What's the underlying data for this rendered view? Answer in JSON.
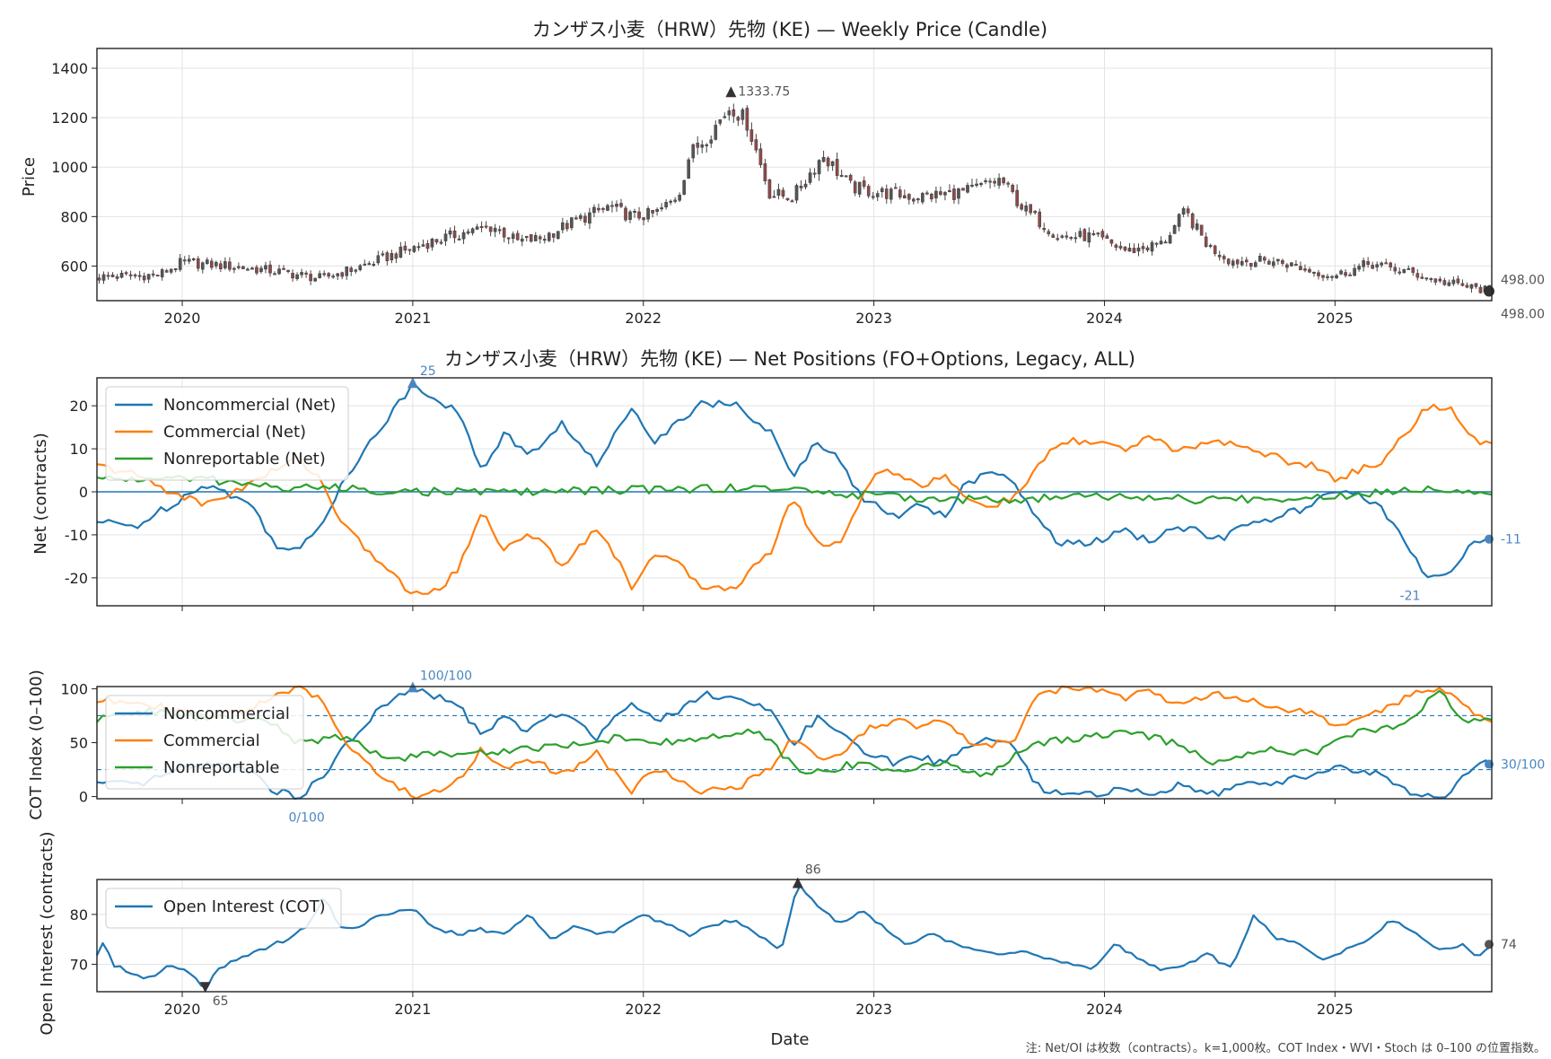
{
  "footnote": "注: Net/OI は枚数（contracts）。k=1,000枚。COT Index・WVI・Stoch は 0–100 の位置指数。",
  "colors": {
    "noncommercial": "#1f77b4",
    "commercial": "#ff7f0e",
    "nonreportable": "#2ca02c",
    "candle_up": "#555555",
    "candle_down": "#8c4a4a",
    "ref_line": "#1f77b4"
  },
  "chart_data": [
    {
      "type": "candlestick",
      "title": "カンザス小麦（HRW）先物 (KE) — Weekly Price (Candle)",
      "ylabel": "Price",
      "xlabel": "",
      "ylim": [
        460,
        1480
      ],
      "xlim": [
        2019.63,
        2025.68
      ],
      "yticks": [
        "600",
        "800",
        "1000",
        "1200",
        "1400"
      ],
      "xticks": [
        "2020",
        "2021",
        "2022",
        "2023",
        "2024",
        "2025"
      ],
      "grid": true,
      "keypoints": {
        "x": [
          2019.63,
          2019.9,
          2020.0,
          2020.2,
          2020.4,
          2020.6,
          2020.75,
          2020.9,
          2021.05,
          2021.2,
          2021.35,
          2021.45,
          2021.55,
          2021.7,
          2021.85,
          2021.95,
          2022.05,
          2022.15,
          2022.2,
          2022.3,
          2022.38,
          2022.45,
          2022.55,
          2022.65,
          2022.78,
          2022.9,
          2023.0,
          2023.2,
          2023.4,
          2023.55,
          2023.65,
          2023.8,
          2023.95,
          2024.1,
          2024.25,
          2024.35,
          2024.45,
          2024.55,
          2024.75,
          2024.9,
          2025.0,
          2025.15,
          2025.3,
          2025.45,
          2025.55,
          2025.68
        ],
        "y": [
          555,
          565,
          615,
          600,
          580,
          550,
          590,
          640,
          690,
          730,
          760,
          700,
          710,
          780,
          840,
          800,
          810,
          880,
          1050,
          1150,
          1250,
          1180,
          890,
          880,
          1050,
          920,
          900,
          880,
          900,
          950,
          830,
          720,
          720,
          660,
          690,
          820,
          680,
          620,
          620,
          580,
          560,
          610,
          580,
          540,
          520,
          498
        ]
      },
      "annotations": [
        {
          "text": "1333.75",
          "x": 2022.38,
          "y": 1333.75
        },
        {
          "text": "498.00",
          "x": 2025.68,
          "y": 498
        },
        {
          "text": "498.00",
          "x": 2025.68,
          "y": 475
        }
      ]
    },
    {
      "type": "line",
      "title": "カンザス小麦（HRW）先物 (KE) — Net Positions (FO+Options, Legacy, ALL)",
      "ylabel": "Net (contracts)",
      "xlabel": "",
      "ylim": [
        -26.5,
        26.5
      ],
      "xlim": [
        2019.63,
        2025.68
      ],
      "yticks": [
        "-20",
        "-10",
        "0",
        "10",
        "20"
      ],
      "legend": "top-left",
      "grid": true,
      "series": [
        {
          "name": "Noncommercial (Net)",
          "color": "#1f77b4",
          "x": [
            2019.63,
            2019.8,
            2019.95,
            2020.1,
            2020.3,
            2020.4,
            2020.5,
            2020.6,
            2020.7,
            2020.85,
            2021.0,
            2021.1,
            2021.2,
            2021.3,
            2021.4,
            2021.5,
            2021.65,
            2021.8,
            2021.95,
            2022.05,
            2022.15,
            2022.25,
            2022.4,
            2022.55,
            2022.65,
            2022.75,
            2022.85,
            2022.95,
            2023.0,
            2023.1,
            2023.2,
            2023.3,
            2023.4,
            2023.5,
            2023.6,
            2023.7,
            2023.8,
            2023.9,
            2024.0,
            2024.1,
            2024.2,
            2024.3,
            2024.4,
            2024.5,
            2024.6,
            2024.7,
            2024.8,
            2024.9,
            2025.0,
            2025.1,
            2025.2,
            2025.3,
            2025.4,
            2025.5,
            2025.6,
            2025.68
          ],
          "y": [
            -7,
            -8,
            -3,
            2,
            -3,
            -12,
            -14,
            -8,
            3,
            14,
            25,
            22,
            18,
            5,
            14,
            8,
            16,
            6,
            20,
            12,
            16,
            21,
            20,
            14,
            3,
            12,
            8,
            -2,
            -3,
            -6,
            -2,
            -6,
            2,
            4,
            3,
            -6,
            -12,
            -12,
            -11,
            -9,
            -12,
            -8,
            -9,
            -11,
            -8,
            -7,
            -5,
            -3,
            0,
            -1,
            -3,
            -12,
            -20,
            -19,
            -11,
            -11
          ]
        },
        {
          "name": "Commercial (Net)",
          "color": "#ff7f0e",
          "x": [
            2019.63,
            2019.8,
            2019.95,
            2020.1,
            2020.3,
            2020.4,
            2020.5,
            2020.6,
            2020.7,
            2020.85,
            2021.0,
            2021.1,
            2021.2,
            2021.3,
            2021.4,
            2021.5,
            2021.65,
            2021.8,
            2021.95,
            2022.05,
            2022.15,
            2022.25,
            2022.4,
            2022.55,
            2022.65,
            2022.75,
            2022.85,
            2022.95,
            2023.0,
            2023.1,
            2023.2,
            2023.3,
            2023.4,
            2023.5,
            2023.6,
            2023.7,
            2023.8,
            2023.9,
            2024.0,
            2024.1,
            2024.2,
            2024.3,
            2024.4,
            2024.5,
            2024.6,
            2024.7,
            2024.8,
            2024.9,
            2025.0,
            2025.1,
            2025.2,
            2025.3,
            2025.4,
            2025.5,
            2025.6,
            2025.68
          ],
          "y": [
            6,
            4,
            0,
            -3,
            2,
            5,
            8,
            3,
            -8,
            -16,
            -24,
            -23,
            -18,
            -4,
            -14,
            -9,
            -17,
            -8,
            -22,
            -14,
            -17,
            -22,
            -22,
            -14,
            -1,
            -12,
            -12,
            -1,
            4,
            5,
            1,
            4,
            -2,
            -3,
            -2,
            5,
            11,
            12,
            11,
            10,
            13,
            9,
            11,
            12,
            10,
            9,
            7,
            6,
            3,
            5,
            7,
            13,
            20,
            19,
            12,
            11
          ]
        },
        {
          "name": "Nonreportable (Net)",
          "color": "#2ca02c",
          "x": [
            2019.63,
            2019.9,
            2020.1,
            2020.4,
            2020.6,
            2021.0,
            2021.5,
            2022.0,
            2022.5,
            2023.0,
            2023.5,
            2024.0,
            2024.5,
            2025.0,
            2025.4,
            2025.68
          ],
          "y": [
            3,
            3,
            3,
            1,
            1,
            0,
            0,
            0.5,
            1,
            -1,
            -2,
            -1,
            -2,
            -1,
            1,
            0
          ]
        }
      ],
      "annotations": [
        {
          "text": "25",
          "x": 2021.0,
          "y": 25
        },
        {
          "text": "-11",
          "x": 2025.68,
          "y": -11
        },
        {
          "text": "-21",
          "x": 2025.32,
          "y": -21
        }
      ]
    },
    {
      "type": "line",
      "title": "",
      "ylabel": "COT Index (0–100)",
      "xlabel": "",
      "ylim": [
        -2,
        102
      ],
      "xlim": [
        2019.63,
        2025.68
      ],
      "yticks": [
        "0",
        "50",
        "100"
      ],
      "legend": "top-left",
      "grid": false,
      "reference_lines": [
        25,
        75
      ],
      "series": [
        {
          "name": "Noncommercial",
          "color": "#1f77b4",
          "x": [
            2019.63,
            2019.8,
            2019.95,
            2020.1,
            2020.3,
            2020.4,
            2020.5,
            2020.6,
            2020.7,
            2020.85,
            2021.0,
            2021.1,
            2021.2,
            2021.3,
            2021.4,
            2021.5,
            2021.65,
            2021.8,
            2021.95,
            2022.05,
            2022.15,
            2022.25,
            2022.4,
            2022.55,
            2022.65,
            2022.75,
            2022.85,
            2022.95,
            2023.0,
            2023.1,
            2023.2,
            2023.3,
            2023.4,
            2023.5,
            2023.6,
            2023.7,
            2023.8,
            2023.9,
            2024.0,
            2024.1,
            2024.2,
            2024.3,
            2024.4,
            2024.5,
            2024.6,
            2024.7,
            2024.8,
            2024.9,
            2025.0,
            2025.1,
            2025.2,
            2025.3,
            2025.4,
            2025.5,
            2025.6,
            2025.68
          ],
          "y": [
            12,
            10,
            22,
            30,
            25,
            5,
            0,
            15,
            45,
            80,
            100,
            92,
            85,
            55,
            75,
            60,
            80,
            55,
            90,
            70,
            80,
            95,
            92,
            78,
            50,
            72,
            62,
            40,
            38,
            30,
            38,
            30,
            48,
            52,
            50,
            10,
            2,
            1,
            3,
            8,
            2,
            10,
            8,
            4,
            10,
            12,
            16,
            20,
            28,
            24,
            20,
            5,
            0,
            2,
            30,
            30
          ]
        },
        {
          "name": "Commercial",
          "color": "#ff7f0e",
          "x": [
            2019.63,
            2019.8,
            2019.95,
            2020.1,
            2020.3,
            2020.4,
            2020.5,
            2020.6,
            2020.7,
            2020.85,
            2021.0,
            2021.1,
            2021.2,
            2021.3,
            2021.4,
            2021.5,
            2021.65,
            2021.8,
            2021.95,
            2022.05,
            2022.15,
            2022.25,
            2022.4,
            2022.55,
            2022.65,
            2022.75,
            2022.85,
            2022.95,
            2023.0,
            2023.1,
            2023.2,
            2023.3,
            2023.4,
            2023.5,
            2023.6,
            2023.7,
            2023.8,
            2023.9,
            2024.0,
            2024.1,
            2024.2,
            2024.3,
            2024.4,
            2024.5,
            2024.6,
            2024.7,
            2024.8,
            2024.9,
            2025.0,
            2025.1,
            2025.2,
            2025.3,
            2025.4,
            2025.5,
            2025.6,
            2025.68
          ],
          "y": [
            88,
            90,
            80,
            72,
            82,
            95,
            100,
            90,
            55,
            20,
            0,
            5,
            15,
            45,
            25,
            35,
            20,
            40,
            5,
            25,
            18,
            5,
            8,
            25,
            55,
            35,
            35,
            60,
            65,
            72,
            62,
            72,
            52,
            48,
            50,
            90,
            100,
            100,
            98,
            92,
            98,
            88,
            92,
            96,
            90,
            86,
            80,
            76,
            65,
            72,
            78,
            92,
            100,
            98,
            75,
            72
          ]
        },
        {
          "name": "Nonreportable",
          "color": "#2ca02c",
          "x": [
            2019.63,
            2019.8,
            2020.0,
            2020.2,
            2020.4,
            2020.5,
            2020.7,
            2020.9,
            2021.1,
            2021.3,
            2021.5,
            2021.7,
            2021.9,
            2022.1,
            2022.3,
            2022.5,
            2022.7,
            2022.9,
            2023.1,
            2023.3,
            2023.5,
            2023.7,
            2023.9,
            2024.1,
            2024.3,
            2024.5,
            2024.7,
            2024.9,
            2025.1,
            2025.3,
            2025.45,
            2025.55,
            2025.68
          ],
          "y": [
            70,
            80,
            75,
            72,
            68,
            50,
            55,
            35,
            40,
            40,
            45,
            48,
            55,
            50,
            55,
            60,
            20,
            30,
            25,
            30,
            20,
            50,
            55,
            60,
            50,
            30,
            45,
            40,
            60,
            65,
            100,
            70,
            72
          ]
        }
      ],
      "annotations": [
        {
          "text": "100/100",
          "x": 2021.0,
          "y": 100
        },
        {
          "text": "0/100",
          "x": 2020.5,
          "y": 0
        },
        {
          "text": "30/100",
          "x": 2025.68,
          "y": 30
        }
      ]
    },
    {
      "type": "line",
      "title": "",
      "ylabel": "Open Interest (contracts)",
      "xlabel": "Date",
      "ylim": [
        64.5,
        87
      ],
      "xlim": [
        2019.63,
        2025.68
      ],
      "yticks": [
        "70",
        "80"
      ],
      "xticks": [
        "2020",
        "2021",
        "2022",
        "2023",
        "2024",
        "2025"
      ],
      "legend": "top-left",
      "grid": true,
      "series": [
        {
          "name": "Open Interest (COT)",
          "color": "#1f77b4",
          "x": [
            2019.63,
            2019.66,
            2019.7,
            2019.75,
            2019.85,
            2019.95,
            2020.05,
            2020.1,
            2020.15,
            2020.25,
            2020.35,
            2020.45,
            2020.55,
            2020.62,
            2020.67,
            2020.75,
            2020.85,
            2021.0,
            2021.1,
            2021.2,
            2021.3,
            2021.4,
            2021.5,
            2021.6,
            2021.7,
            2021.8,
            2021.9,
            2022.0,
            2022.1,
            2022.2,
            2022.3,
            2022.4,
            2022.5,
            2022.6,
            2022.67,
            2022.75,
            2022.85,
            2022.95,
            2023.05,
            2023.15,
            2023.25,
            2023.35,
            2023.45,
            2023.55,
            2023.65,
            2023.75,
            2023.85,
            2023.95,
            2024.05,
            2024.15,
            2024.25,
            2024.35,
            2024.45,
            2024.55,
            2024.65,
            2024.75,
            2024.85,
            2024.95,
            2025.05,
            2025.15,
            2025.25,
            2025.35,
            2025.45,
            2025.55,
            2025.62,
            2025.68
          ],
          "y": [
            72,
            75,
            70,
            69,
            67,
            70,
            68,
            65,
            69,
            71,
            73,
            75,
            78,
            84,
            78,
            77,
            80,
            81,
            77,
            76,
            77,
            76,
            80,
            75,
            78,
            76,
            77,
            80,
            78,
            76,
            78,
            79,
            76,
            73,
            86,
            82,
            78,
            81,
            77,
            74,
            76,
            74,
            73,
            72,
            73,
            71,
            70,
            69,
            74,
            71,
            69,
            70,
            72,
            69,
            80,
            75,
            74,
            71,
            73,
            75,
            79,
            76,
            73,
            74,
            71,
            74
          ]
        }
      ],
      "annotations": [
        {
          "text": "86",
          "x": 2022.67,
          "y": 86
        },
        {
          "text": "65",
          "x": 2020.1,
          "y": 65
        },
        {
          "text": "74",
          "x": 2025.68,
          "y": 74
        }
      ]
    }
  ]
}
